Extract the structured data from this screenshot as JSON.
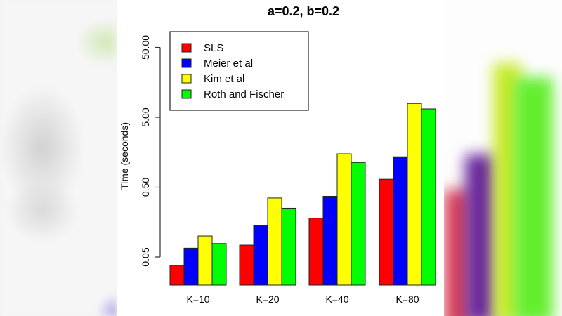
{
  "chart_data": {
    "type": "bar",
    "title": "a=0.2, b=0.2",
    "xlabel": "",
    "ylabel": "Time (seconds)",
    "yscale": "log10",
    "ylim": [
      0.03,
      60
    ],
    "yticks": [
      0.05,
      0.5,
      5,
      50
    ],
    "ytick_labels": [
      "0.05",
      "0.50",
      "5.00",
      "50.00"
    ],
    "categories": [
      "K=10",
      "K=20",
      "K=40",
      "K=80"
    ],
    "series": [
      {
        "name": "SLS",
        "color": "#ff0000",
        "values": [
          0.038,
          0.074,
          0.18,
          0.65
        ]
      },
      {
        "name": "Meier et al",
        "color": "#0000ff",
        "values": [
          0.067,
          0.14,
          0.37,
          1.36
        ]
      },
      {
        "name": "Kim et al",
        "color": "#ffff00",
        "values": [
          0.1,
          0.35,
          1.5,
          7.9
        ]
      },
      {
        "name": "Roth and Fischer",
        "color": "#00ff00",
        "values": [
          0.078,
          0.25,
          1.13,
          6.6
        ]
      }
    ],
    "legend_position": "top-left",
    "grid": false
  }
}
